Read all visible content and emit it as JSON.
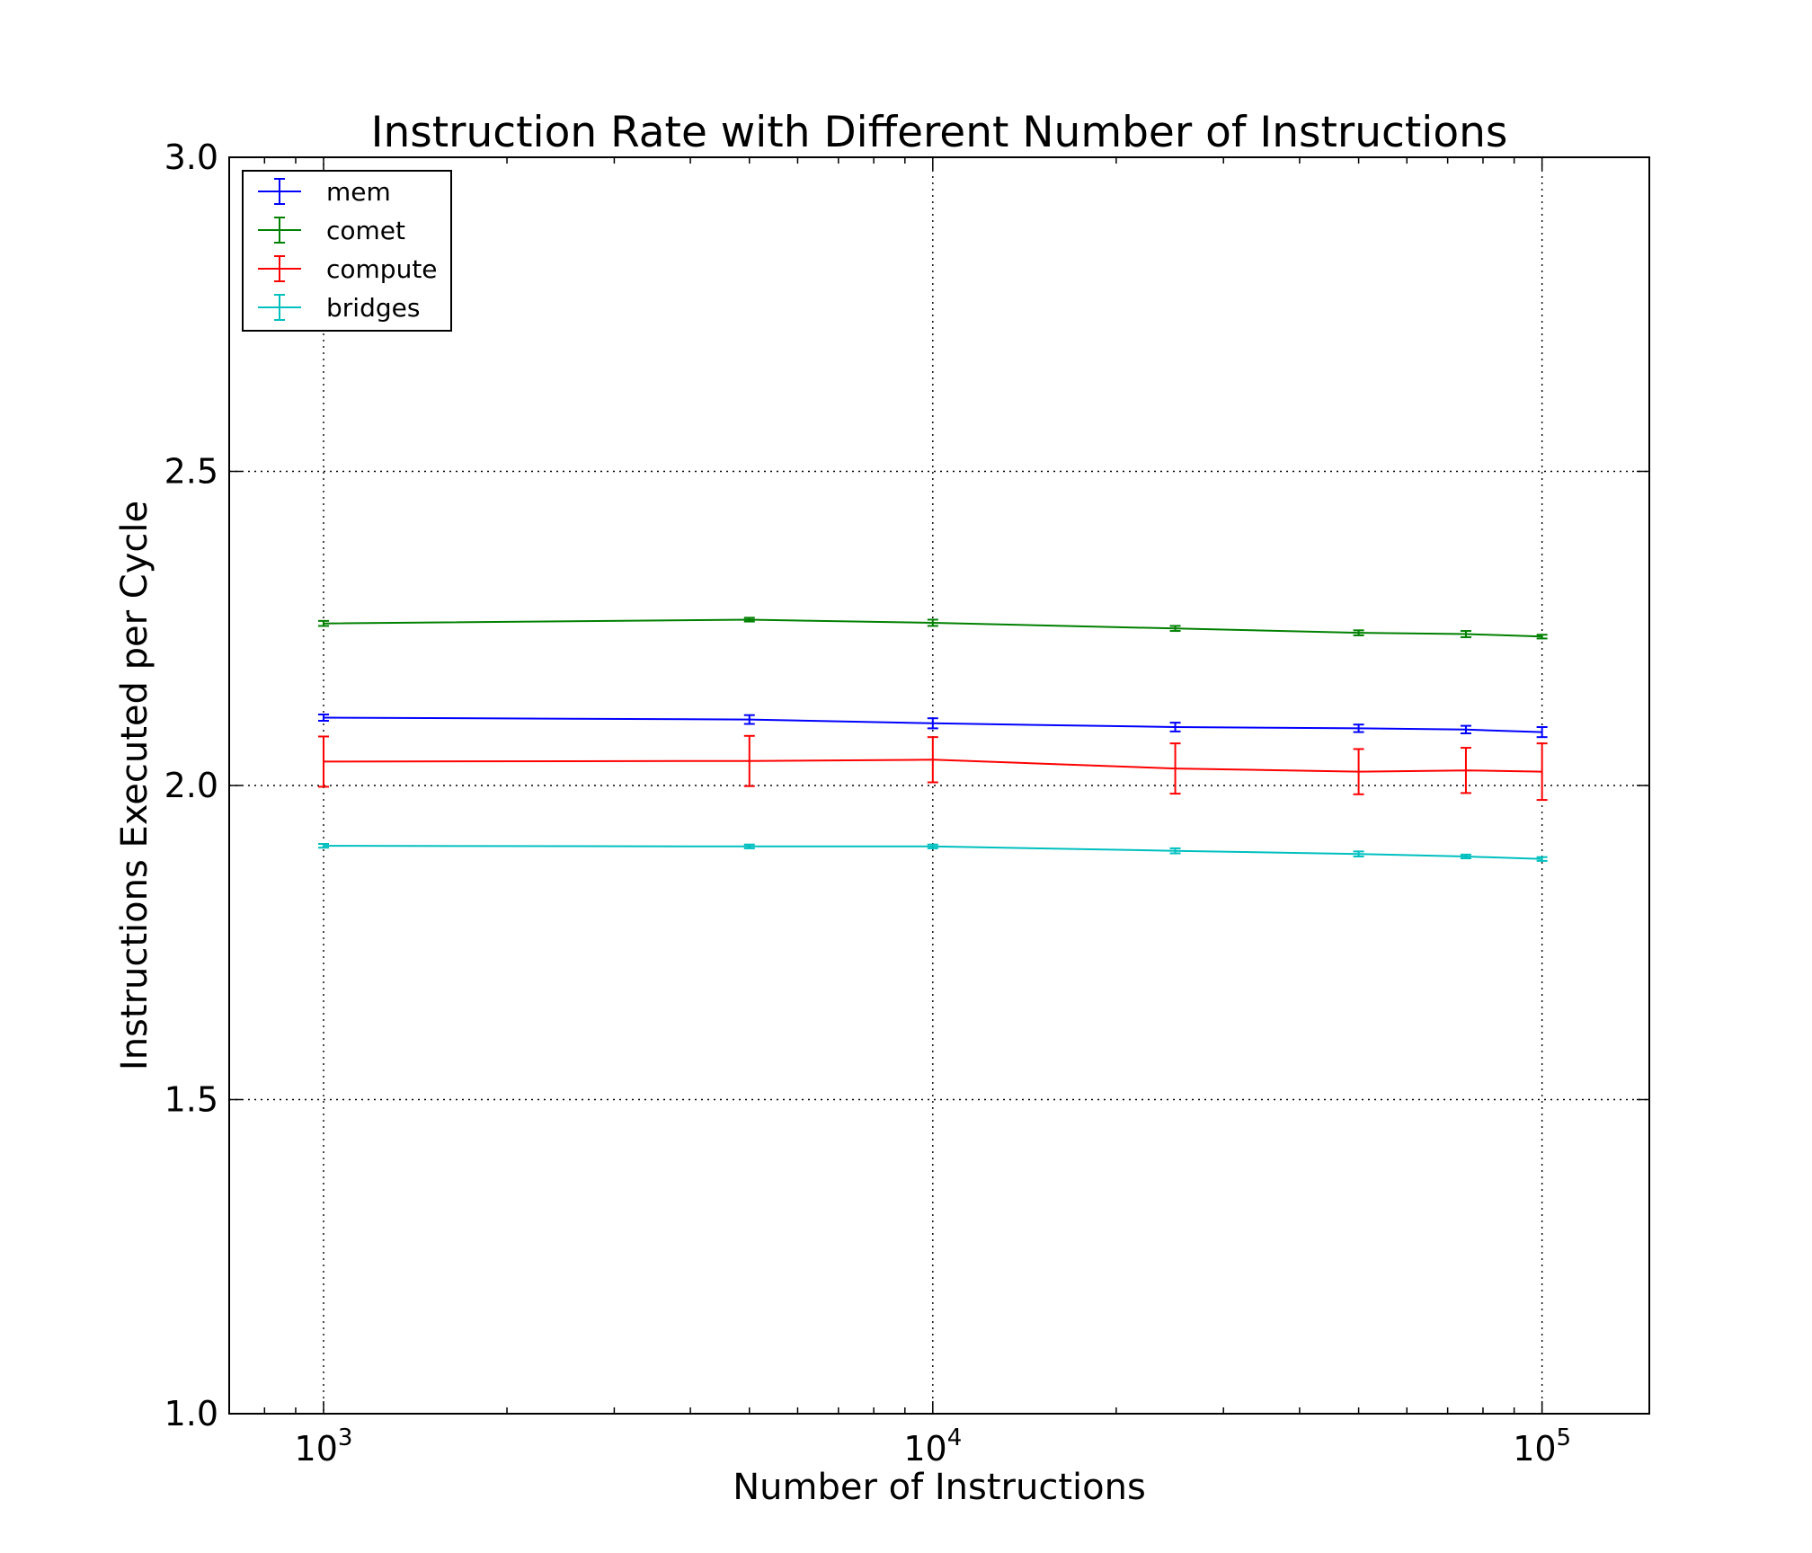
{
  "chart_data": {
    "type": "line",
    "title": "Instruction Rate with Different Number of Instructions",
    "xlabel": "Number of Instructions",
    "ylabel": "Instructions Executed per Cycle",
    "xscale": "log",
    "xlim": [
      700,
      150000
    ],
    "ylim": [
      1.0,
      3.0
    ],
    "grid": true,
    "legend_position": "top-left",
    "x": [
      1000,
      5000,
      10000,
      25000,
      50000,
      75000,
      100000
    ],
    "x_major_ticks": [
      1000,
      10000,
      100000
    ],
    "x_tick_labels": [
      {
        "base": "10",
        "exp": "3"
      },
      {
        "base": "10",
        "exp": "4"
      },
      {
        "base": "10",
        "exp": "5"
      }
    ],
    "y_ticks": [
      1.0,
      1.5,
      2.0,
      2.5,
      3.0
    ],
    "y_tick_labels": [
      "1.0",
      "1.5",
      "2.0",
      "2.5",
      "3.0"
    ],
    "series": [
      {
        "name": "mem",
        "color": "#0000ff",
        "values": [
          2.108,
          2.105,
          2.099,
          2.093,
          2.091,
          2.089,
          2.085
        ],
        "errors": [
          0.005,
          0.007,
          0.008,
          0.007,
          0.006,
          0.006,
          0.008
        ]
      },
      {
        "name": "comet",
        "color": "#008000",
        "values": [
          2.258,
          2.264,
          2.259,
          2.25,
          2.243,
          2.241,
          2.237
        ],
        "errors": [
          0.004,
          0.003,
          0.005,
          0.004,
          0.004,
          0.005,
          0.003
        ]
      },
      {
        "name": "compute",
        "color": "#ff0000",
        "values": [
          2.038,
          2.039,
          2.041,
          2.027,
          2.022,
          2.024,
          2.022
        ],
        "errors": [
          0.04,
          0.04,
          0.036,
          0.04,
          0.036,
          0.036,
          0.045
        ]
      },
      {
        "name": "bridges",
        "color": "#00bfbf",
        "values": [
          1.904,
          1.903,
          1.903,
          1.896,
          1.891,
          1.887,
          1.883
        ],
        "errors": [
          0.003,
          0.003,
          0.003,
          0.004,
          0.004,
          0.003,
          0.003
        ]
      }
    ]
  }
}
